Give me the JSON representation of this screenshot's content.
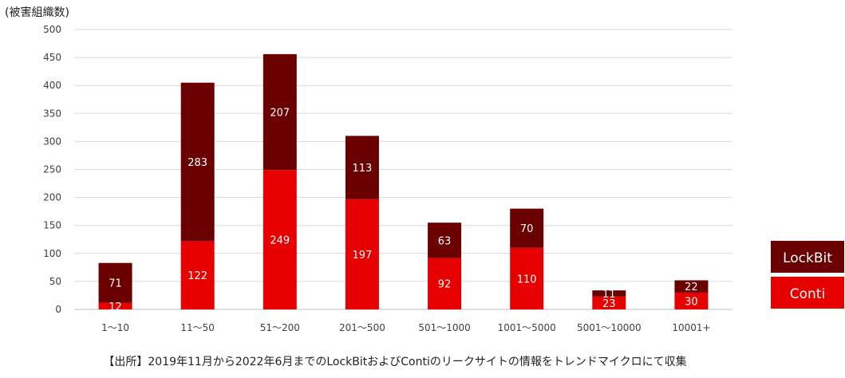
{
  "chart_data": {
    "type": "bar",
    "stacked": true,
    "ylabel": "(被害組織数)",
    "ylim": [
      0,
      500
    ],
    "yticks": [
      0,
      50,
      100,
      150,
      200,
      250,
      300,
      350,
      400,
      450,
      500
    ],
    "grid": true,
    "legend_position": "right",
    "categories": [
      "1〜10",
      "11〜50",
      "51〜200",
      "201〜500",
      "501〜1000",
      "1001〜5000",
      "5001〜10000",
      "10001+"
    ],
    "series": [
      {
        "name": "Conti",
        "color": "#e60000",
        "values": [
          12,
          122,
          249,
          197,
          92,
          110,
          23,
          30
        ]
      },
      {
        "name": "LockBit",
        "color": "#6b0000",
        "values": [
          71,
          283,
          207,
          113,
          63,
          70,
          11,
          22
        ]
      }
    ],
    "footnote": "【出所】2019年11月から2022年6月までのLockBitおよびContiのリークサイトの情報をトレンドマイクロにて収集"
  }
}
